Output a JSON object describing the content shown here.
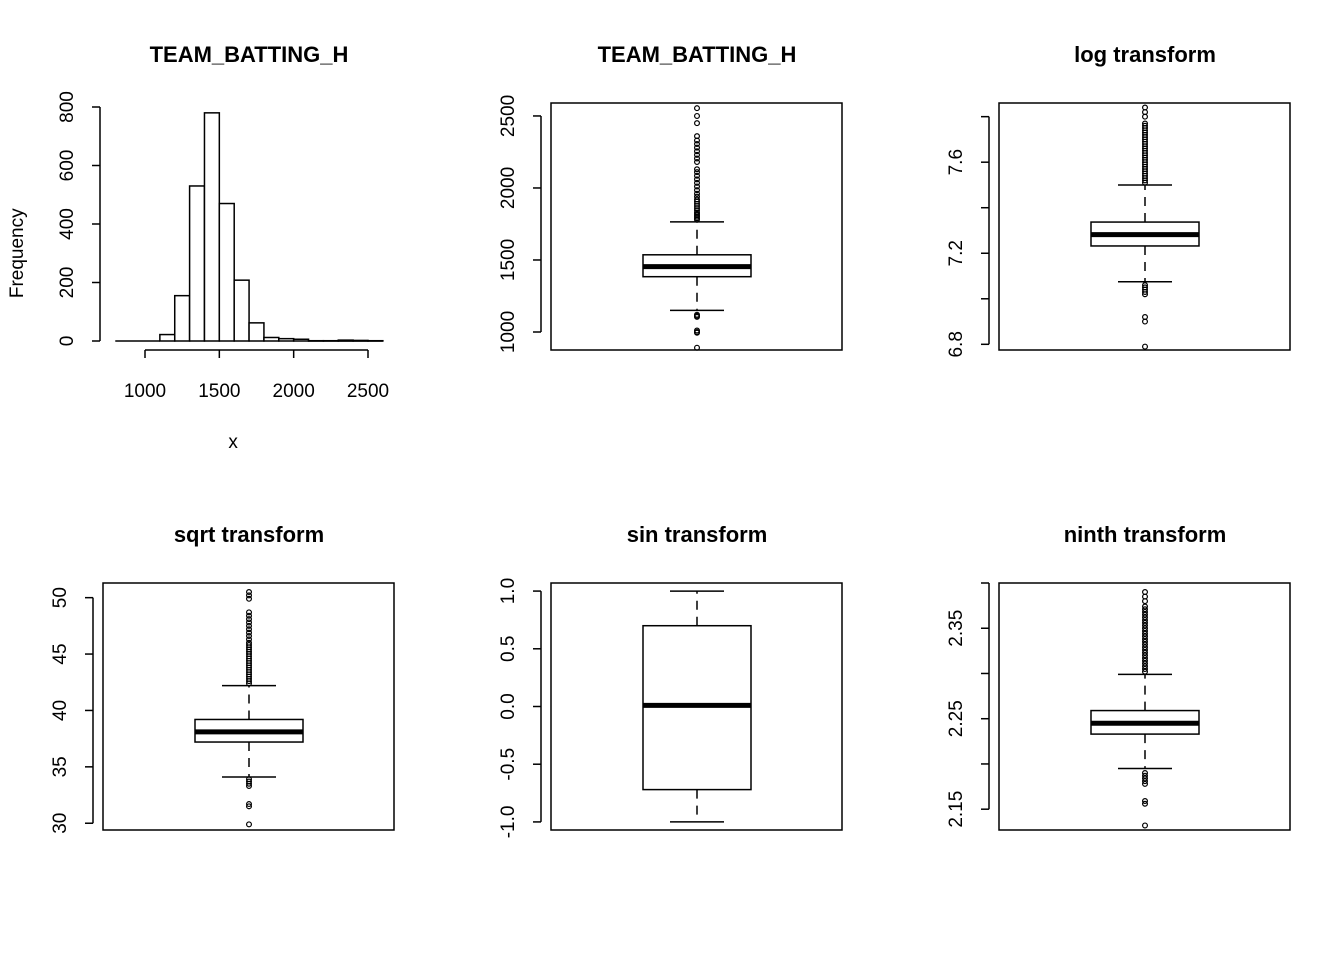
{
  "chart_data": [
    {
      "type": "histogram",
      "title": "TEAM_BATTING_H",
      "xlabel": "x",
      "ylabel": "Frequency",
      "xlim": [
        800,
        2600
      ],
      "ylim": [
        0,
        800
      ],
      "xticks": [
        1000,
        1500,
        2000,
        2500
      ],
      "yticks": [
        0,
        200,
        400,
        600,
        800
      ],
      "bins": [
        {
          "from": 1100,
          "to": 1200,
          "count": 22
        },
        {
          "from": 1200,
          "to": 1300,
          "count": 155
        },
        {
          "from": 1300,
          "to": 1400,
          "count": 530
        },
        {
          "from": 1400,
          "to": 1500,
          "count": 780
        },
        {
          "from": 1500,
          "to": 1600,
          "count": 470
        },
        {
          "from": 1600,
          "to": 1700,
          "count": 208
        },
        {
          "from": 1700,
          "to": 1800,
          "count": 62
        },
        {
          "from": 1800,
          "to": 1900,
          "count": 12
        },
        {
          "from": 1900,
          "to": 2000,
          "count": 8
        },
        {
          "from": 2000,
          "to": 2100,
          "count": 6
        },
        {
          "from": 2100,
          "to": 2200,
          "count": 1
        },
        {
          "from": 2200,
          "to": 2300,
          "count": 1
        },
        {
          "from": 2300,
          "to": 2400,
          "count": 3
        },
        {
          "from": 2400,
          "to": 2500,
          "count": 2
        },
        {
          "from": 2500,
          "to": 2600,
          "count": 1
        }
      ]
    },
    {
      "type": "boxplot",
      "title": "TEAM_BATTING_H",
      "ylim": [
        875,
        2590
      ],
      "yticks": [
        1000,
        1500,
        2000,
        2500
      ],
      "q1": 1384,
      "median": 1454,
      "q3": 1536,
      "whisker_low": 1150,
      "whisker_high": 1765,
      "outliers": [
        891,
        995,
        1000,
        1010,
        1105,
        1112,
        1120,
        1780,
        1790,
        1800,
        1810,
        1820,
        1830,
        1845,
        1860,
        1875,
        1890,
        1905,
        1920,
        1940,
        1960,
        1985,
        2010,
        2035,
        2060,
        2085,
        2110,
        2130,
        2180,
        2205,
        2230,
        2255,
        2280,
        2305,
        2330,
        2360,
        2450,
        2500,
        2554
      ]
    },
    {
      "type": "boxplot",
      "title": "log transform",
      "ylim": [
        6.775,
        7.86
      ],
      "yticks": [
        6.8,
        7.2,
        7.6
      ],
      "yticks_unlabeled": [
        7.0,
        7.4,
        7.8
      ],
      "q1": 7.232,
      "median": 7.282,
      "q3": 7.337,
      "whisker_low": 7.075,
      "whisker_high": 7.5,
      "outliers": [
        6.79,
        6.9,
        6.92,
        7.02,
        7.03,
        7.04,
        7.05,
        7.06,
        7.51,
        7.52,
        7.53,
        7.54,
        7.55,
        7.56,
        7.57,
        7.58,
        7.59,
        7.6,
        7.61,
        7.62,
        7.63,
        7.64,
        7.65,
        7.66,
        7.67,
        7.68,
        7.69,
        7.7,
        7.71,
        7.72,
        7.73,
        7.74,
        7.75,
        7.76,
        7.77,
        7.8,
        7.82,
        7.84
      ]
    },
    {
      "type": "boxplot",
      "title": "sqrt transform",
      "ylim": [
        29.4,
        51.3
      ],
      "yticks": [
        30,
        35,
        40,
        45,
        50
      ],
      "q1": 37.2,
      "median": 38.1,
      "q3": 39.2,
      "whisker_low": 34.1,
      "whisker_high": 42.2,
      "outliers": [
        29.9,
        31.5,
        31.7,
        33.3,
        33.5,
        33.7,
        33.9,
        42.4,
        42.6,
        42.8,
        43.0,
        43.2,
        43.4,
        43.6,
        43.8,
        44.0,
        44.2,
        44.4,
        44.6,
        44.8,
        45.0,
        45.2,
        45.4,
        45.6,
        45.8,
        46.0,
        46.3,
        46.6,
        46.9,
        47.2,
        47.5,
        47.8,
        48.1,
        48.4,
        48.7,
        49.9,
        50.2,
        50.5
      ]
    },
    {
      "type": "boxplot",
      "title": "sin transform",
      "ylim": [
        -1.07,
        1.07
      ],
      "yticks": [
        -1.0,
        -0.5,
        0.0,
        0.5,
        1.0
      ],
      "ytick_labels": [
        "-1.0",
        "-0.5",
        "0.0",
        "0.5",
        "1.0"
      ],
      "q1": -0.72,
      "median": 0.01,
      "q3": 0.7,
      "whisker_low": -1.0,
      "whisker_high": 1.0,
      "outliers": []
    },
    {
      "type": "boxplot",
      "title": "ninth transform",
      "ylim": [
        2.127,
        2.4
      ],
      "yticks": [
        2.15,
        2.25,
        2.35
      ],
      "yticks_unlabeled": [
        2.2,
        2.3,
        2.4
      ],
      "q1": 2.233,
      "median": 2.245,
      "q3": 2.259,
      "whisker_low": 2.195,
      "whisker_high": 2.299,
      "outliers": [
        2.132,
        2.156,
        2.159,
        2.178,
        2.181,
        2.184,
        2.187,
        2.19,
        2.302,
        2.305,
        2.308,
        2.311,
        2.314,
        2.317,
        2.32,
        2.323,
        2.326,
        2.329,
        2.332,
        2.335,
        2.338,
        2.341,
        2.344,
        2.347,
        2.35,
        2.353,
        2.356,
        2.359,
        2.362,
        2.365,
        2.368,
        2.371,
        2.374,
        2.38,
        2.385,
        2.39
      ]
    }
  ]
}
